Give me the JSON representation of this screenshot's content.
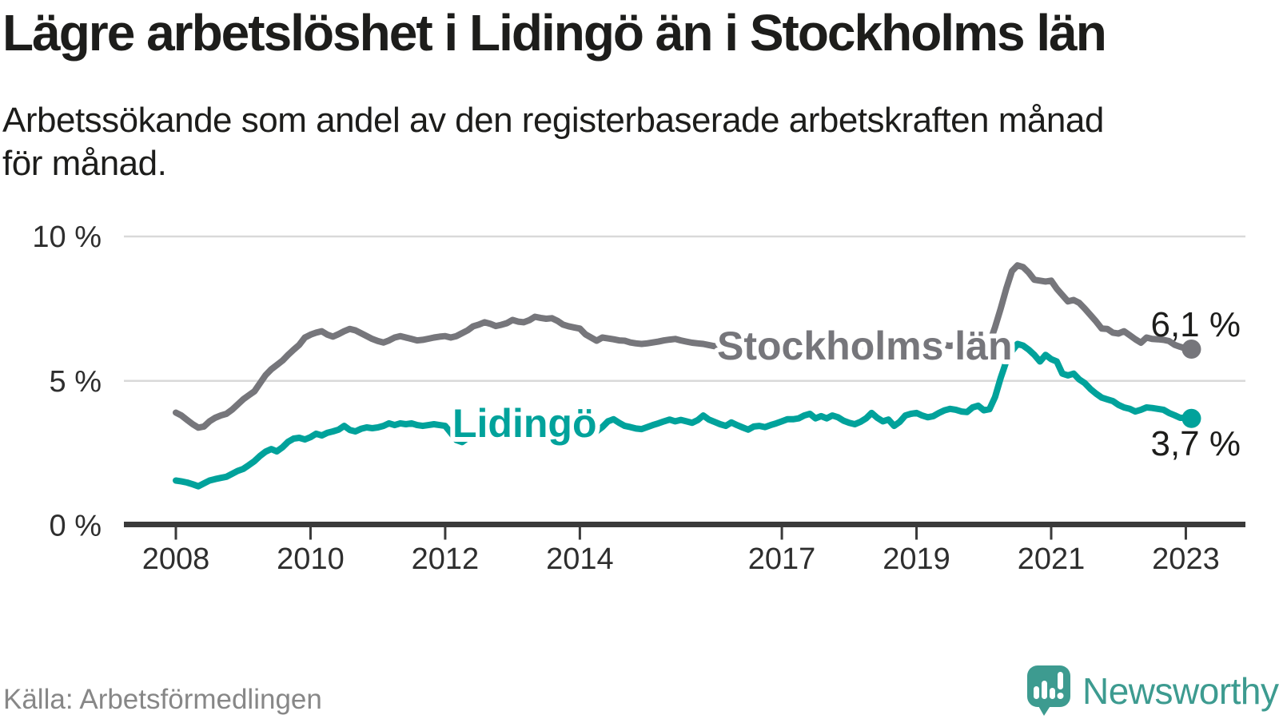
{
  "title": "Lägre arbetslöshet i Lidingö än i Stockholms län",
  "subtitle_lines": [
    "Arbetssökande som andel av den registerbaserade arbetskraften månad",
    "för månad."
  ],
  "source": "Källa: Arbetsförmedlingen",
  "logo": {
    "name": "Newsworthy",
    "icon": "newsworthy-speech-bubble-bar-chart-icon"
  },
  "colors": {
    "stockholm_gray": "#76767b",
    "lidingo_teal": "#00a29b",
    "text_dark": "#1d1d1b",
    "muted_gray": "#878787",
    "gridline": "#d9d9d9",
    "axis": "#3a3a3a",
    "logo_teal": "#3d9b90"
  },
  "chart_data": {
    "type": "line",
    "unit": "%",
    "frequency": "monthly",
    "start": "2008-01",
    "end": "2023-02",
    "grid": "horizontal-only",
    "ylim": [
      0,
      10.5
    ],
    "y_ticks": [
      {
        "label": "10 %",
        "value": 10
      },
      {
        "label": "5 %",
        "value": 5
      },
      {
        "label": "0 %",
        "value": 0
      }
    ],
    "x_ticks": [
      {
        "label": "2008",
        "year": 2008
      },
      {
        "label": "2010",
        "year": 2010
      },
      {
        "label": "2012",
        "year": 2012
      },
      {
        "label": "2014",
        "year": 2014
      },
      {
        "label": "2017",
        "year": 2017
      },
      {
        "label": "2019",
        "year": 2019
      },
      {
        "label": "2021",
        "year": 2021
      },
      {
        "label": "2023",
        "year": 2023
      }
    ],
    "series": [
      {
        "name": "Stockholms län",
        "color": "#76767b",
        "end_label": "6,1 %",
        "end_value": 6.1,
        "values": [
          3.9,
          3.8,
          3.65,
          3.5,
          3.38,
          3.42,
          3.6,
          3.72,
          3.8,
          3.86,
          4.0,
          4.18,
          4.36,
          4.5,
          4.64,
          4.92,
          5.2,
          5.4,
          5.55,
          5.7,
          5.9,
          6.08,
          6.25,
          6.5,
          6.6,
          6.67,
          6.72,
          6.6,
          6.53,
          6.62,
          6.72,
          6.8,
          6.75,
          6.65,
          6.55,
          6.45,
          6.38,
          6.33,
          6.4,
          6.5,
          6.55,
          6.5,
          6.45,
          6.4,
          6.42,
          6.46,
          6.5,
          6.53,
          6.55,
          6.5,
          6.55,
          6.65,
          6.75,
          6.89,
          6.95,
          7.03,
          6.98,
          6.9,
          6.94,
          7.0,
          7.11,
          7.05,
          7.03,
          7.1,
          7.22,
          7.18,
          7.15,
          7.17,
          7.08,
          6.95,
          6.89,
          6.85,
          6.81,
          6.61,
          6.5,
          6.39,
          6.5,
          6.47,
          6.44,
          6.4,
          6.39,
          6.33,
          6.3,
          6.28,
          6.3,
          6.33,
          6.36,
          6.4,
          6.43,
          6.45,
          6.4,
          6.36,
          6.32,
          6.3,
          6.28,
          6.24,
          6.2,
          6.22,
          6.26,
          6.3,
          6.26,
          6.22,
          6.25,
          6.28,
          6.24,
          6.2,
          6.23,
          6.26,
          6.28,
          6.24,
          6.2,
          6.23,
          6.26,
          6.22,
          6.18,
          6.22,
          6.26,
          6.22,
          6.18,
          6.22,
          6.25,
          6.21,
          6.18,
          6.22,
          6.26,
          6.22,
          6.18,
          6.21,
          6.25,
          6.22,
          6.19,
          6.23,
          6.26,
          6.23,
          6.2,
          6.24,
          6.27,
          6.24,
          6.21,
          6.25,
          6.28,
          6.25,
          6.23,
          6.26,
          6.27,
          6.3,
          6.86,
          7.5,
          8.19,
          8.8,
          9.0,
          8.94,
          8.75,
          8.5,
          8.47,
          8.44,
          8.47,
          8.19,
          7.97,
          7.75,
          7.8,
          7.7,
          7.5,
          7.28,
          7.06,
          6.81,
          6.8,
          6.67,
          6.64,
          6.72,
          6.58,
          6.44,
          6.32,
          6.5,
          6.45,
          6.44,
          6.42,
          6.38,
          6.25,
          6.18,
          6.12,
          6.1
        ]
      },
      {
        "name": "Lidingö",
        "color": "#00a29b",
        "end_label": "3,7 %",
        "end_value": 3.7,
        "values": [
          1.55,
          1.52,
          1.48,
          1.42,
          1.35,
          1.45,
          1.55,
          1.6,
          1.64,
          1.68,
          1.78,
          1.88,
          1.95,
          2.08,
          2.22,
          2.4,
          2.55,
          2.64,
          2.56,
          2.7,
          2.89,
          3.0,
          3.03,
          2.97,
          3.05,
          3.17,
          3.11,
          3.2,
          3.25,
          3.31,
          3.44,
          3.3,
          3.25,
          3.34,
          3.39,
          3.36,
          3.39,
          3.44,
          3.53,
          3.47,
          3.53,
          3.5,
          3.53,
          3.47,
          3.44,
          3.47,
          3.5,
          3.47,
          3.44,
          3.2,
          2.95,
          2.88,
          3.02,
          3.15,
          3.25,
          3.35,
          3.44,
          3.52,
          3.6,
          3.66,
          3.72,
          3.55,
          3.42,
          3.5,
          3.6,
          3.52,
          3.44,
          3.5,
          3.58,
          3.62,
          3.55,
          3.65,
          3.72,
          3.6,
          3.42,
          3.25,
          3.4,
          3.6,
          3.67,
          3.55,
          3.44,
          3.4,
          3.35,
          3.33,
          3.4,
          3.47,
          3.53,
          3.6,
          3.66,
          3.6,
          3.65,
          3.6,
          3.55,
          3.64,
          3.8,
          3.66,
          3.58,
          3.5,
          3.44,
          3.56,
          3.47,
          3.39,
          3.31,
          3.42,
          3.44,
          3.4,
          3.47,
          3.53,
          3.6,
          3.67,
          3.67,
          3.7,
          3.8,
          3.86,
          3.7,
          3.78,
          3.7,
          3.8,
          3.74,
          3.62,
          3.55,
          3.5,
          3.58,
          3.7,
          3.89,
          3.72,
          3.6,
          3.66,
          3.44,
          3.58,
          3.8,
          3.86,
          3.89,
          3.8,
          3.74,
          3.78,
          3.89,
          3.98,
          4.03,
          4.0,
          3.94,
          3.92,
          4.08,
          4.14,
          3.98,
          4.02,
          4.44,
          5.1,
          5.67,
          6.03,
          6.28,
          6.22,
          6.08,
          5.9,
          5.67,
          5.9,
          5.75,
          5.67,
          5.25,
          5.19,
          5.25,
          5.05,
          4.92,
          4.72,
          4.56,
          4.42,
          4.36,
          4.3,
          4.17,
          4.08,
          4.03,
          3.94,
          4.0,
          4.08,
          4.06,
          4.03,
          4.0,
          3.89,
          3.81,
          3.72,
          3.72,
          3.7
        ]
      }
    ]
  }
}
